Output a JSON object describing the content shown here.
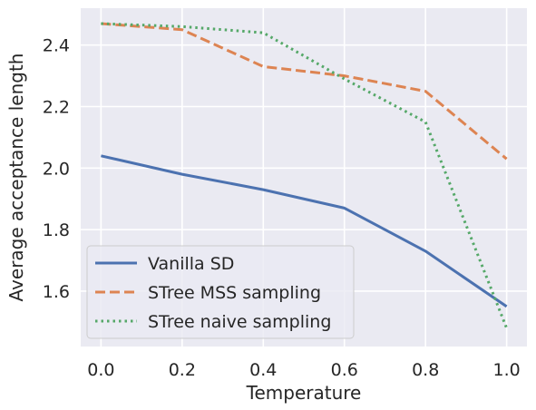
{
  "chart_data": {
    "type": "line",
    "title": "",
    "xlabel": "Temperature",
    "ylabel": "Average acceptance length",
    "xlim": [
      -0.05,
      1.05
    ],
    "ylim": [
      1.42,
      2.52
    ],
    "x_ticks": [
      0.0,
      0.2,
      0.4,
      0.6,
      0.8,
      1.0
    ],
    "x_tick_labels": [
      "0.0",
      "0.2",
      "0.4",
      "0.6",
      "0.8",
      "1.0"
    ],
    "y_ticks": [
      1.6,
      1.8,
      2.0,
      2.2,
      2.4
    ],
    "y_tick_labels": [
      "1.6",
      "1.8",
      "2.0",
      "2.2",
      "2.4"
    ],
    "grid": true,
    "background": "#eaeaf2",
    "legend_position": "lower-left",
    "x": [
      0.0,
      0.2,
      0.4,
      0.6,
      0.8,
      1.0
    ],
    "series": [
      {
        "name": "Vanilla SD",
        "values": [
          2.04,
          1.98,
          1.93,
          1.87,
          1.73,
          1.55
        ],
        "color": "#4c72b0",
        "style": "solid"
      },
      {
        "name": "STree MSS sampling",
        "values": [
          2.47,
          2.45,
          2.33,
          2.3,
          2.25,
          2.03
        ],
        "color": "#dd8452",
        "style": "dashed"
      },
      {
        "name": "STree naive sampling",
        "values": [
          2.47,
          2.46,
          2.44,
          2.29,
          2.15,
          1.48
        ],
        "color": "#55a868",
        "style": "dotted"
      }
    ]
  }
}
